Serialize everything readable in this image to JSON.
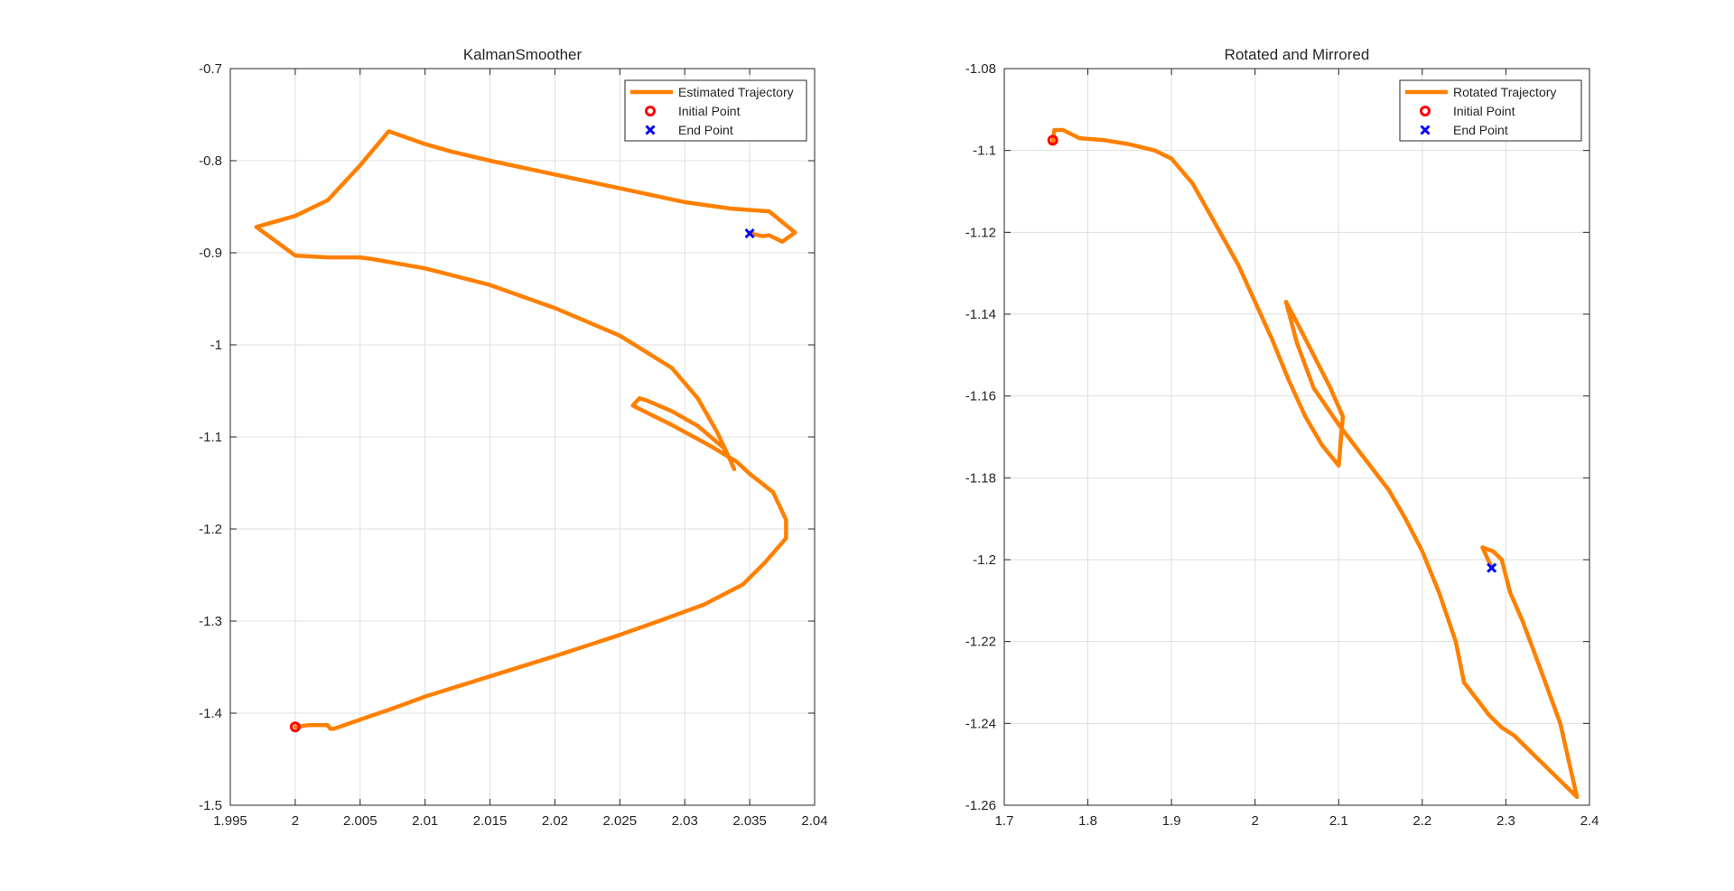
{
  "chart_data": [
    {
      "type": "line",
      "title": "KalmanSmoother",
      "xlabel": "",
      "ylabel": "",
      "xlim": [
        1.995,
        2.04
      ],
      "ylim": [
        -1.5,
        -0.7
      ],
      "x_ticks": [
        1.995,
        2,
        2.005,
        2.01,
        2.015,
        2.02,
        2.025,
        2.03,
        2.035,
        2.04
      ],
      "x_tick_labels": [
        "1.995",
        "2",
        "2.005",
        "2.01",
        "2.015",
        "2.02",
        "2.025",
        "2.03",
        "2.035",
        "2.04"
      ],
      "y_ticks": [
        -1.5,
        -1.4,
        -1.3,
        -1.2,
        -1.1,
        -1.0,
        -0.9,
        -0.8,
        -0.7
      ],
      "y_tick_labels": [
        "-1.5",
        "-1.4",
        "-1.3",
        "-1.2",
        "-1.1",
        "-1",
        "-0.9",
        "-0.8",
        "-0.7"
      ],
      "grid": true,
      "legend_position": "top-right",
      "colors": {
        "trajectory": "#FF8000",
        "initial": "#FF0000",
        "end": "#0000FF"
      },
      "series": [
        {
          "name": "Estimated Trajectory",
          "kind": "line",
          "x": [
            2.0,
            2.001,
            2.0025,
            2.0027,
            2.003,
            2.005,
            2.0075,
            2.01,
            2.015,
            2.02,
            2.025,
            2.028,
            2.0315,
            2.0345,
            2.0362,
            2.0378,
            2.0378,
            2.0368,
            2.035,
            2.034,
            2.032,
            2.029,
            2.027,
            2.026,
            2.0265,
            2.027,
            2.029,
            2.031,
            2.033,
            2.0335,
            2.0338,
            2.0335,
            2.033,
            2.0325,
            2.031,
            2.029,
            2.025,
            2.02,
            2.015,
            2.01,
            2.006,
            2.005,
            2.0025,
            2.0,
            1.997,
            2.0,
            2.0025,
            2.005,
            2.0072,
            2.01,
            2.012,
            2.015,
            2.02,
            2.025,
            2.03,
            2.0335,
            2.0365,
            2.0385,
            2.0375,
            2.0365,
            2.036,
            2.035
          ],
          "y": [
            -1.415,
            -1.413,
            -1.413,
            -1.417,
            -1.417,
            -1.407,
            -1.395,
            -1.382,
            -1.36,
            -1.338,
            -1.315,
            -1.3,
            -1.282,
            -1.26,
            -1.236,
            -1.21,
            -1.19,
            -1.16,
            -1.14,
            -1.127,
            -1.11,
            -1.087,
            -1.073,
            -1.066,
            -1.058,
            -1.06,
            -1.072,
            -1.088,
            -1.112,
            -1.125,
            -1.135,
            -1.125,
            -1.11,
            -1.095,
            -1.058,
            -1.025,
            -0.99,
            -0.96,
            -0.935,
            -0.917,
            -0.907,
            -0.905,
            -0.905,
            -0.903,
            -0.872,
            -0.86,
            -0.843,
            -0.805,
            -0.768,
            -0.782,
            -0.79,
            -0.8,
            -0.815,
            -0.83,
            -0.845,
            -0.852,
            -0.855,
            -0.878,
            -0.888,
            -0.881,
            -0.882,
            -0.879
          ]
        },
        {
          "name": "Initial Point",
          "kind": "marker-circle",
          "x": [
            2.0
          ],
          "y": [
            -1.415
          ]
        },
        {
          "name": "End Point",
          "kind": "marker-x",
          "x": [
            2.035
          ],
          "y": [
            -0.879
          ]
        }
      ]
    },
    {
      "type": "line",
      "title": "Rotated and Mirrored",
      "xlabel": "",
      "ylabel": "",
      "xlim": [
        1.7,
        2.4
      ],
      "ylim": [
        -1.26,
        -1.08
      ],
      "x_ticks": [
        1.7,
        1.8,
        1.9,
        2.0,
        2.1,
        2.2,
        2.3,
        2.4
      ],
      "x_tick_labels": [
        "1.7",
        "1.8",
        "1.9",
        "2",
        "2.1",
        "2.2",
        "2.3",
        "2.4"
      ],
      "y_ticks": [
        -1.26,
        -1.24,
        -1.22,
        -1.2,
        -1.18,
        -1.16,
        -1.14,
        -1.12,
        -1.1,
        -1.08
      ],
      "y_tick_labels": [
        "-1.26",
        "-1.24",
        "-1.22",
        "-1.2",
        "-1.18",
        "-1.16",
        "-1.14",
        "-1.12",
        "-1.1",
        "-1.08"
      ],
      "grid": true,
      "legend_position": "top-right",
      "colors": {
        "trajectory": "#FF8000",
        "initial": "#FF0000",
        "end": "#0000FF"
      },
      "series": [
        {
          "name": "Rotated Trajectory",
          "kind": "line",
          "x": [
            1.758,
            1.76,
            1.77,
            1.78,
            1.79,
            1.82,
            1.85,
            1.88,
            1.9,
            1.925,
            1.95,
            1.98,
            2.0,
            2.02,
            2.04,
            2.06,
            2.08,
            2.1,
            2.105,
            2.09,
            2.07,
            2.05,
            2.037,
            2.05,
            2.07,
            2.1,
            2.13,
            2.16,
            2.18,
            2.2,
            2.22,
            2.24,
            2.25,
            2.28,
            2.295,
            2.31,
            2.33,
            2.36,
            2.385,
            2.365,
            2.34,
            2.32,
            2.305,
            2.295,
            2.285,
            2.272,
            2.283
          ],
          "y": [
            -1.098,
            -1.095,
            -1.095,
            -1.096,
            -1.097,
            -1.0975,
            -1.0985,
            -1.1,
            -1.102,
            -1.108,
            -1.117,
            -1.128,
            -1.137,
            -1.146,
            -1.156,
            -1.165,
            -1.172,
            -1.177,
            -1.165,
            -1.158,
            -1.15,
            -1.142,
            -1.137,
            -1.147,
            -1.158,
            -1.167,
            -1.175,
            -1.183,
            -1.19,
            -1.198,
            -1.208,
            -1.22,
            -1.23,
            -1.238,
            -1.241,
            -1.243,
            -1.247,
            -1.253,
            -1.258,
            -1.24,
            -1.226,
            -1.215,
            -1.208,
            -1.2,
            -1.198,
            -1.197,
            -1.202
          ]
        },
        {
          "name": "Initial Point",
          "kind": "marker-circle",
          "x": [
            1.758
          ],
          "y": [
            -1.0975
          ]
        },
        {
          "name": "End Point",
          "kind": "marker-x",
          "x": [
            2.283
          ],
          "y": [
            -1.202
          ]
        }
      ]
    }
  ]
}
